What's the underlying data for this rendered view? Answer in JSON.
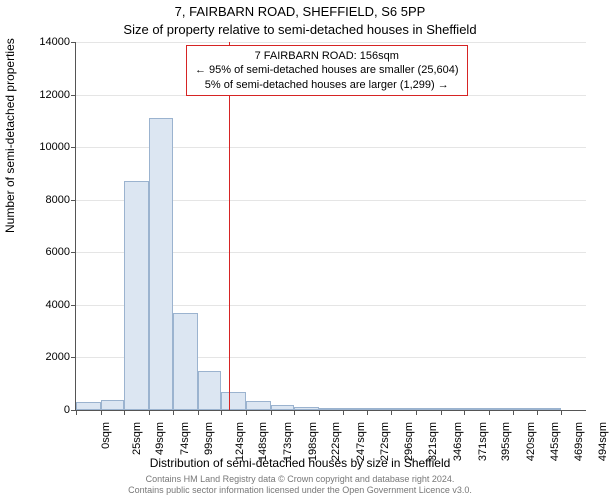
{
  "chart": {
    "type": "histogram",
    "title_main": "7, FAIRBARN ROAD, SHEFFIELD, S6 5PP",
    "title_sub": "Size of property relative to semi-detached houses in Sheffield",
    "ylabel": "Number of semi-detached properties",
    "xlabel": "Distribution of semi-detached houses by size in Sheffield",
    "background_color": "#ffffff",
    "grid_color": "#e5e5e5",
    "axis_color": "#555555",
    "bar_fill": "#dce6f2",
    "bar_border": "#9bb3cf",
    "marker_color": "#d62424",
    "font_family": "Arial, sans-serif",
    "title_fontsize": 13,
    "label_fontsize": 12,
    "tick_fontsize": 11,
    "attribution_fontsize": 9,
    "attribution_color": "#777777",
    "ylim": [
      0,
      14000
    ],
    "ytick_step": 2000,
    "yticks": [
      0,
      2000,
      4000,
      6000,
      8000,
      10000,
      12000,
      14000
    ],
    "xlim": [
      0,
      519
    ],
    "xticks": [
      0,
      25,
      49,
      74,
      99,
      124,
      148,
      173,
      198,
      222,
      247,
      272,
      296,
      321,
      346,
      371,
      395,
      420,
      445,
      469,
      494
    ],
    "xtick_labels": [
      "0sqm",
      "25sqm",
      "49sqm",
      "74sqm",
      "99sqm",
      "124sqm",
      "148sqm",
      "173sqm",
      "198sqm",
      "222sqm",
      "247sqm",
      "272sqm",
      "296sqm",
      "321sqm",
      "346sqm",
      "371sqm",
      "395sqm",
      "420sqm",
      "445sqm",
      "469sqm",
      "494sqm"
    ],
    "bars": [
      {
        "x0": 0,
        "x1": 25,
        "value": 320
      },
      {
        "x0": 25,
        "x1": 49,
        "value": 380
      },
      {
        "x0": 49,
        "x1": 74,
        "value": 8700
      },
      {
        "x0": 74,
        "x1": 99,
        "value": 11100
      },
      {
        "x0": 99,
        "x1": 124,
        "value": 3700
      },
      {
        "x0": 124,
        "x1": 148,
        "value": 1500
      },
      {
        "x0": 148,
        "x1": 173,
        "value": 700
      },
      {
        "x0": 173,
        "x1": 198,
        "value": 350
      },
      {
        "x0": 198,
        "x1": 222,
        "value": 180
      },
      {
        "x0": 222,
        "x1": 247,
        "value": 100
      },
      {
        "x0": 247,
        "x1": 272,
        "value": 60
      },
      {
        "x0": 272,
        "x1": 296,
        "value": 70
      },
      {
        "x0": 296,
        "x1": 321,
        "value": 25
      },
      {
        "x0": 321,
        "x1": 346,
        "value": 15
      },
      {
        "x0": 346,
        "x1": 371,
        "value": 10
      },
      {
        "x0": 371,
        "x1": 395,
        "value": 8
      },
      {
        "x0": 395,
        "x1": 420,
        "value": 5
      },
      {
        "x0": 420,
        "x1": 445,
        "value": 3
      },
      {
        "x0": 445,
        "x1": 469,
        "value": 2
      },
      {
        "x0": 469,
        "x1": 494,
        "value": 2
      }
    ],
    "marker": {
      "x": 156,
      "line1": "7 FAIRBARN ROAD: 156sqm",
      "line2": "← 95% of semi-detached houses are smaller (25,604)",
      "line3": "5% of semi-detached houses are larger (1,299) →"
    },
    "attribution_line1": "Contains HM Land Registry data © Crown copyright and database right 2024.",
    "attribution_line2": "Contains public sector information licensed under the Open Government Licence v3.0."
  }
}
